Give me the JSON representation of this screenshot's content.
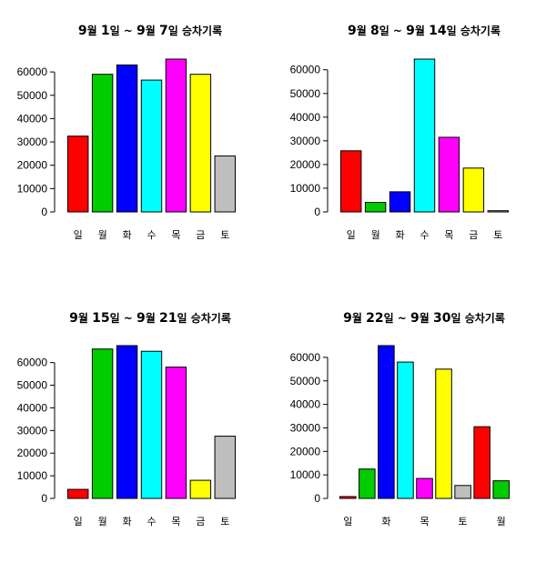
{
  "chart_data": [
    {
      "type": "bar",
      "title_parts": [
        "9",
        "월 ",
        "1",
        "일 ~ ",
        "9",
        "월 ",
        "7",
        "일 승차기록"
      ],
      "categories": [
        "일",
        "월",
        "화",
        "수",
        "목",
        "금",
        "토"
      ],
      "values": [
        32500,
        59000,
        63000,
        56500,
        65500,
        59000,
        24000
      ],
      "colors": [
        "#ff0000",
        "#00cc00",
        "#0000ff",
        "#00ffff",
        "#ff00ff",
        "#ffff00",
        "#bebebe"
      ],
      "yticks": [
        0,
        10000,
        20000,
        30000,
        40000,
        50000,
        60000
      ],
      "ylim": [
        0,
        65500
      ]
    },
    {
      "type": "bar",
      "title_parts": [
        "9",
        "월 ",
        "8",
        "일 ~ ",
        "9",
        "월 ",
        "14",
        "일 승차기록"
      ],
      "categories": [
        "일",
        "월",
        "화",
        "수",
        "목",
        "금",
        "토"
      ],
      "values": [
        25800,
        4000,
        8500,
        64500,
        31500,
        18500,
        500
      ],
      "colors": [
        "#ff0000",
        "#00cc00",
        "#0000ff",
        "#00ffff",
        "#ff00ff",
        "#ffff00",
        "#bebebe"
      ],
      "yticks": [
        0,
        10000,
        20000,
        30000,
        40000,
        50000,
        60000
      ],
      "ylim": [
        0,
        64500
      ]
    },
    {
      "type": "bar",
      "title_parts": [
        "9",
        "월 ",
        "15",
        "일 ~ ",
        "9",
        "월 ",
        "21",
        "일 승차기록"
      ],
      "categories": [
        "일",
        "월",
        "화",
        "수",
        "목",
        "금",
        "토"
      ],
      "values": [
        4000,
        66000,
        67500,
        65000,
        58000,
        8000,
        27500
      ],
      "colors": [
        "#ff0000",
        "#00cc00",
        "#0000ff",
        "#00ffff",
        "#ff00ff",
        "#ffff00",
        "#bebebe"
      ],
      "yticks": [
        0,
        10000,
        20000,
        30000,
        40000,
        50000,
        60000
      ],
      "ylim": [
        0,
        67500
      ]
    },
    {
      "type": "bar",
      "title_parts": [
        "9",
        "월 ",
        "22",
        "일 ~ ",
        "9",
        "월 ",
        "30",
        "일 승차기록"
      ],
      "categories": [
        "일",
        "",
        "화",
        "",
        "목",
        "",
        "토",
        "",
        "월"
      ],
      "values": [
        800,
        12500,
        65000,
        58000,
        8500,
        55000,
        5500,
        30500,
        7500
      ],
      "colors": [
        "#ff0000",
        "#00cc00",
        "#0000ff",
        "#00ffff",
        "#ff00ff",
        "#ffff00",
        "#bebebe",
        "#ff0000",
        "#00cc00"
      ],
      "yticks": [
        0,
        10000,
        20000,
        30000,
        40000,
        50000,
        60000
      ],
      "ylim": [
        0,
        65000
      ]
    }
  ]
}
